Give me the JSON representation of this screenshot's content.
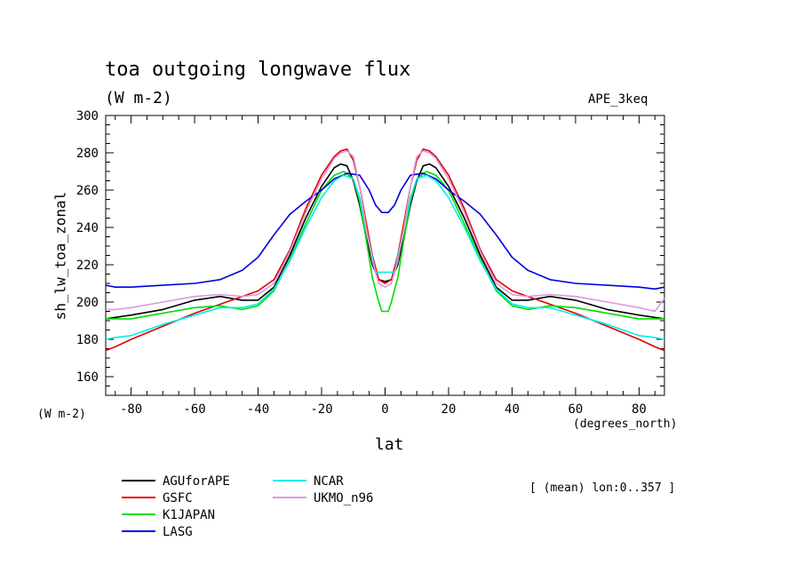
{
  "chart_data": {
    "type": "line",
    "title": "toa outgoing longwave flux",
    "units": "(W m-2)",
    "dataset": "APE_3keq",
    "ylabel": "sh_lw_toa_zonal",
    "yunits": "(W m-2)",
    "xlabel": "lat",
    "xunits": "(degrees_north)",
    "note": "[ (mean) lon:0..357 ]",
    "xlim": [
      -88,
      88
    ],
    "ylim": [
      150,
      300
    ],
    "xticks": [
      -80,
      -60,
      -40,
      -20,
      0,
      20,
      40,
      60,
      80
    ],
    "yticks": [
      160,
      180,
      200,
      220,
      240,
      260,
      280,
      300
    ],
    "grid": false,
    "legend_position": "bottom-left",
    "series": [
      {
        "name": "AGUforAPE",
        "color": "#000000",
        "x": [
          -88,
          -80,
          -70,
          -60,
          -52,
          -45,
          -40,
          -35,
          -30,
          -25,
          -20,
          -16,
          -14,
          -12,
          -10,
          -8,
          -6,
          -4,
          -2,
          0,
          2,
          4,
          6,
          8,
          10,
          12,
          14,
          16,
          20,
          25,
          30,
          35,
          40,
          45,
          52,
          60,
          70,
          80,
          88
        ],
        "values": [
          191,
          193,
          196,
          201,
          203,
          201,
          201,
          208,
          225,
          245,
          262,
          272,
          274,
          273,
          265,
          252,
          235,
          220,
          212,
          211,
          212,
          220,
          235,
          252,
          265,
          273,
          274,
          272,
          262,
          245,
          225,
          208,
          201,
          201,
          203,
          201,
          196,
          193,
          191
        ]
      },
      {
        "name": "GSFC",
        "color": "#e00000",
        "x": [
          -88,
          -85,
          -80,
          -70,
          -60,
          -50,
          -45,
          -40,
          -35,
          -30,
          -25,
          -20,
          -16,
          -14,
          -12,
          -10,
          -8,
          -6,
          -4,
          -2,
          0,
          2,
          4,
          6,
          8,
          10,
          12,
          14,
          16,
          20,
          25,
          30,
          35,
          40,
          45,
          50,
          60,
          70,
          80,
          85,
          88
        ],
        "values": [
          174,
          176,
          180,
          187,
          194,
          200,
          203,
          206,
          212,
          228,
          250,
          268,
          278,
          281,
          282,
          276,
          262,
          243,
          225,
          212,
          210,
          212,
          225,
          243,
          262,
          276,
          282,
          281,
          278,
          268,
          250,
          228,
          212,
          206,
          203,
          200,
          194,
          187,
          180,
          176,
          174
        ]
      },
      {
        "name": "K1JAPAN",
        "color": "#00dd00",
        "x": [
          -88,
          -80,
          -70,
          -60,
          -52,
          -45,
          -40,
          -35,
          -30,
          -25,
          -20,
          -16,
          -13,
          -10,
          -8,
          -6,
          -4,
          -2,
          -1,
          1,
          2,
          4,
          6,
          8,
          10,
          13,
          16,
          20,
          25,
          30,
          35,
          40,
          45,
          52,
          60,
          70,
          80,
          88
        ],
        "values": [
          191,
          191,
          194,
          197,
          198,
          196,
          198,
          206,
          223,
          242,
          260,
          268,
          270,
          266,
          254,
          234,
          213,
          200,
          195,
          195,
          200,
          213,
          234,
          254,
          266,
          270,
          268,
          260,
          242,
          223,
          206,
          198,
          196,
          198,
          197,
          194,
          191,
          191
        ]
      },
      {
        "name": "LASG",
        "color": "#0000dd",
        "x": [
          -88,
          -85,
          -80,
          -70,
          -60,
          -52,
          -45,
          -40,
          -35,
          -30,
          -25,
          -20,
          -16,
          -12,
          -8,
          -5,
          -3,
          -1,
          1,
          3,
          5,
          8,
          12,
          16,
          20,
          25,
          30,
          35,
          40,
          45,
          52,
          60,
          70,
          80,
          85,
          88
        ],
        "values": [
          209,
          208,
          208,
          209,
          210,
          212,
          217,
          224,
          236,
          247,
          254,
          260,
          266,
          269,
          268,
          260,
          252,
          248,
          248,
          252,
          260,
          268,
          269,
          266,
          260,
          254,
          247,
          236,
          224,
          217,
          212,
          210,
          209,
          208,
          207,
          208
        ]
      },
      {
        "name": "NCAR",
        "color": "#00eeee",
        "x": [
          -88,
          -85,
          -80,
          -70,
          -60,
          -52,
          -45,
          -40,
          -35,
          -30,
          -25,
          -20,
          -16,
          -13,
          -10,
          -8,
          -6,
          -4,
          -3,
          3,
          4,
          6,
          8,
          10,
          13,
          16,
          20,
          25,
          30,
          35,
          40,
          45,
          52,
          60,
          70,
          80,
          85,
          88
        ],
        "values": [
          180,
          181,
          182,
          188,
          193,
          197,
          197,
          199,
          207,
          222,
          240,
          256,
          265,
          268,
          266,
          256,
          240,
          224,
          216,
          216,
          224,
          240,
          256,
          266,
          268,
          265,
          256,
          240,
          222,
          207,
          199,
          197,
          197,
          193,
          188,
          182,
          181,
          180
        ]
      },
      {
        "name": "UKMO_n96",
        "color": "#dd99dd",
        "x": [
          -88,
          -85,
          -80,
          -70,
          -60,
          -52,
          -45,
          -40,
          -35,
          -30,
          -25,
          -20,
          -16,
          -14,
          -12,
          -10,
          -8,
          -6,
          -4,
          -2,
          0,
          2,
          4,
          6,
          8,
          10,
          12,
          14,
          16,
          20,
          25,
          30,
          35,
          40,
          45,
          52,
          60,
          70,
          80,
          85,
          88
        ],
        "values": [
          196,
          196,
          197,
          200,
          203,
          204,
          203,
          204,
          210,
          227,
          248,
          266,
          277,
          280,
          281,
          278,
          262,
          240,
          222,
          210,
          208,
          210,
          222,
          240,
          262,
          278,
          281,
          280,
          277,
          266,
          248,
          227,
          210,
          204,
          203,
          204,
          203,
          200,
          197,
          195,
          202
        ]
      }
    ]
  }
}
